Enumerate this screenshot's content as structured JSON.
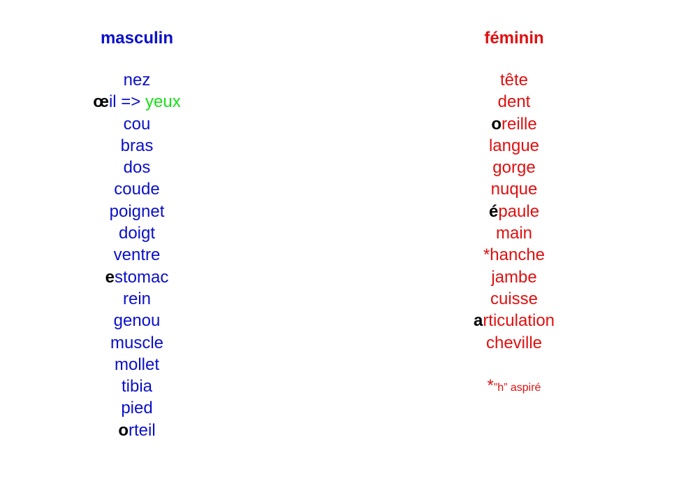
{
  "colors": {
    "masculine": "#0a10c8",
    "feminine": "#e01010",
    "plural": "#17e017",
    "highlight": "#000000"
  },
  "masculine": {
    "heading": "masculin",
    "words": [
      {
        "first": "",
        "rest": "nez"
      },
      {
        "first": "œ",
        "rest": "il =>",
        "extra": "yeux"
      },
      {
        "first": "",
        "rest": "cou"
      },
      {
        "first": "",
        "rest": "bras"
      },
      {
        "first": "",
        "rest": "dos"
      },
      {
        "first": "",
        "rest": "coude"
      },
      {
        "first": "",
        "rest": "poignet"
      },
      {
        "first": "",
        "rest": "doigt"
      },
      {
        "first": "",
        "rest": "ventre"
      },
      {
        "first": "e",
        "rest": "stomac"
      },
      {
        "first": "",
        "rest": "rein"
      },
      {
        "first": "",
        "rest": "genou"
      },
      {
        "first": "",
        "rest": "muscle"
      },
      {
        "first": "",
        "rest": "mollet"
      },
      {
        "first": "",
        "rest": "tibia"
      },
      {
        "first": "",
        "rest": "pied"
      },
      {
        "first": "o",
        "rest": "rteil"
      }
    ]
  },
  "feminine": {
    "heading": "féminin",
    "words": [
      {
        "first": "",
        "rest": "tête"
      },
      {
        "first": "",
        "rest": "dent"
      },
      {
        "first": "o",
        "rest": "reille"
      },
      {
        "first": "",
        "rest": "langue"
      },
      {
        "first": "",
        "rest": "gorge"
      },
      {
        "first": "",
        "rest": "nuque"
      },
      {
        "first": "é",
        "rest": "paule"
      },
      {
        "first": "",
        "rest": "main"
      },
      {
        "first": "",
        "rest": "*hanche"
      },
      {
        "first": "",
        "rest": "jambe"
      },
      {
        "first": "",
        "rest": "cuisse"
      },
      {
        "first": "a",
        "rest": "rticulation"
      },
      {
        "first": "",
        "rest": "cheville"
      }
    ],
    "note": {
      "star": "*",
      "text": "”h” aspiré"
    }
  }
}
